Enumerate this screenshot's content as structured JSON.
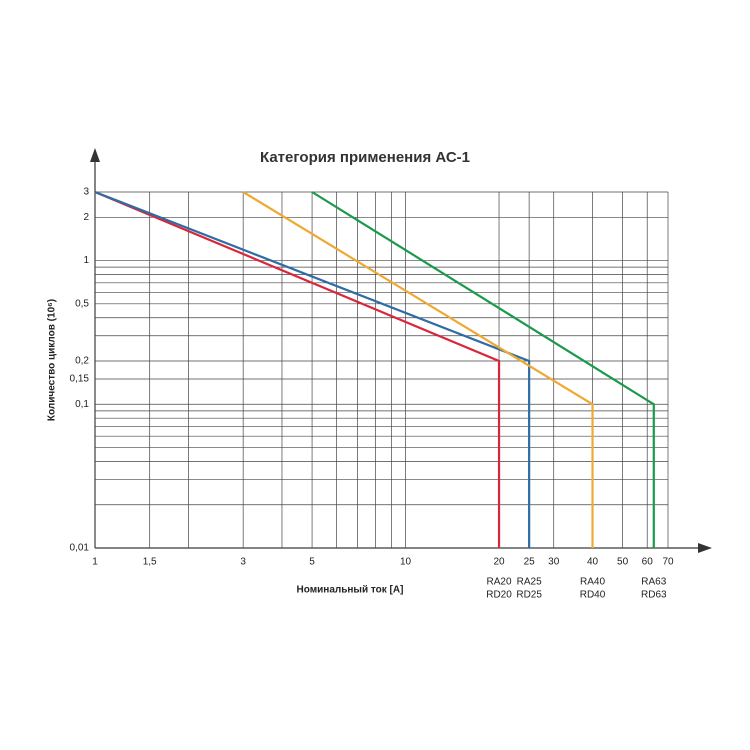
{
  "chart_data": {
    "type": "line",
    "title": "Категория применения АС-1",
    "x_label": "Номинальный ток [A]",
    "y_label": "Количество циклов (10⁶)",
    "xscale": "log",
    "yscale": "log",
    "grid": true,
    "xlim": [
      1,
      70
    ],
    "ylim": [
      0.01,
      3
    ],
    "xticks": [
      1,
      {
        "value": 1.5,
        "label": "1,5"
      },
      3,
      5,
      10,
      20,
      25,
      30,
      40,
      50,
      60,
      70
    ],
    "xminor": [
      2,
      4,
      6,
      7,
      8,
      9
    ],
    "yticks": [
      3,
      2,
      1,
      {
        "value": 0.5,
        "label": "0,5"
      },
      {
        "value": 0.2,
        "label": "0,2"
      },
      {
        "value": 0.15,
        "label": "0,15"
      },
      {
        "value": 0.1,
        "label": "0,1"
      },
      {
        "value": 0.01,
        "label": "0,01"
      }
    ],
    "yminor": [
      0.9,
      0.8,
      0.7,
      0.6,
      0.4,
      0.3,
      0.09,
      0.08,
      0.07,
      0.06,
      0.05,
      0.04,
      0.03,
      0.02
    ],
    "series": [
      {
        "labels": [
          "RA20",
          "RD20"
        ],
        "color": "#d9263a",
        "x": [
          1,
          20,
          20
        ],
        "values": [
          3,
          0.2,
          0.01
        ]
      },
      {
        "labels": [
          "RA25",
          "RD25"
        ],
        "color": "#2e6da4",
        "x": [
          1,
          25,
          25
        ],
        "values": [
          3,
          0.2,
          0.01
        ]
      },
      {
        "labels": [
          "RA40",
          "RD40"
        ],
        "color": "#f0a830",
        "x": [
          3,
          40,
          40
        ],
        "values": [
          3,
          0.1,
          0.01
        ]
      },
      {
        "labels": [
          "RA63",
          "RD63"
        ],
        "color": "#1a9a4a",
        "x": [
          5,
          63,
          63
        ],
        "values": [
          3,
          0.1,
          0.01
        ]
      }
    ]
  }
}
